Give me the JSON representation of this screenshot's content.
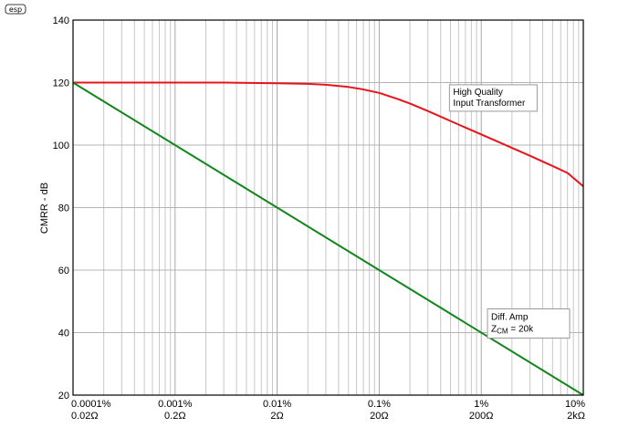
{
  "logo": "esp",
  "chart_data": {
    "type": "line",
    "ylabel": "CMRR - dB",
    "xlabel": "",
    "yscale": "linear",
    "xscale": "log",
    "ylim": [
      20,
      140
    ],
    "xlim": [
      0.0001,
      10
    ],
    "grid": true,
    "yticks": [
      {
        "value": 20,
        "label": "20"
      },
      {
        "value": 40,
        "label": "40"
      },
      {
        "value": 60,
        "label": "60"
      },
      {
        "value": 80,
        "label": "80"
      },
      {
        "value": 100,
        "label": "100"
      },
      {
        "value": 120,
        "label": "120"
      },
      {
        "value": 140,
        "label": "140"
      }
    ],
    "xticks": [
      {
        "value": 0.0001,
        "label": "0.0001%",
        "label2": "0.02Ω"
      },
      {
        "value": 0.001,
        "label": "0.001%",
        "label2": "0.2Ω"
      },
      {
        "value": 0.01,
        "label": "0.01%",
        "label2": "2Ω"
      },
      {
        "value": 0.1,
        "label": "0.1%",
        "label2": "20Ω"
      },
      {
        "value": 1,
        "label": "1%",
        "label2": "200Ω"
      },
      {
        "value": 10,
        "label": "10%",
        "label2": "2kΩ"
      }
    ],
    "series": [
      {
        "color": "#e8141c",
        "x": [
          0.0001,
          0.0003,
          0.001,
          0.003,
          0.01,
          0.02,
          0.03,
          0.05,
          0.07,
          0.1,
          0.15,
          0.2,
          0.3,
          0.5,
          0.7,
          1,
          1.5,
          2,
          3,
          5,
          7,
          10
        ],
        "y": [
          120,
          120,
          120,
          120,
          119.8,
          119.6,
          119.3,
          118.6,
          117.8,
          116.7,
          114.8,
          113.3,
          110.9,
          107.7,
          105.6,
          103.4,
          100.9,
          99.1,
          96.6,
          93.3,
          91.1,
          86.8
        ]
      },
      {
        "color": "#13861c",
        "x": [
          0.0001,
          10
        ],
        "y": [
          120,
          20
        ]
      }
    ],
    "annotations": [
      {
        "lines": [
          "High Quality",
          "Input Transformer"
        ],
        "x": 0.53,
        "y": 115.5
      },
      {
        "lines": [
          "Diff. Amp",
          "Z",
          "CM",
          " = 20k"
        ],
        "x": 1.25,
        "y": 43.5
      }
    ]
  }
}
